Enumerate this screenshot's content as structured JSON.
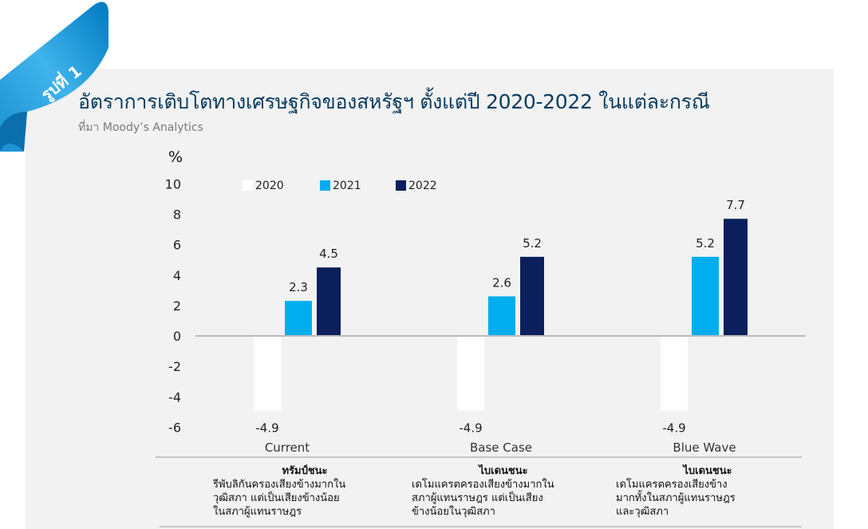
{
  "badge": "รูปที่ 1",
  "title": "อัตราการเติบโตทางเศรษฐกิจของสหรัฐฯ ตั้งแต่ปี 2020-2022 ในแต่ละกรณี",
  "source": "ที่มา Moody’s Analytics",
  "colors": {
    "2020": "#ffffff",
    "2021": "#00aeef",
    "2022": "#0b1f5c",
    "title": "#0a3d62",
    "ribbon": "#0095da"
  },
  "chart_data": {
    "type": "bar",
    "title": "อัตราการเติบโตทางเศรษฐกิจของสหรัฐฯ ตั้งแต่ปี 2020-2022 ในแต่ละกรณี",
    "ylabel": "%",
    "xlabel": "",
    "ylim": [
      -6,
      10
    ],
    "yticks": [
      10,
      8,
      6,
      4,
      2,
      0,
      -2,
      -4,
      -6
    ],
    "legend_position": "top-left",
    "categories": [
      "Current",
      "Base Case",
      "Blue Wave"
    ],
    "series": [
      {
        "name": "2020",
        "values": [
          -4.9,
          -4.9,
          -4.9
        ]
      },
      {
        "name": "2021",
        "values": [
          2.3,
          2.6,
          5.2
        ]
      },
      {
        "name": "2022",
        "values": [
          4.5,
          5.2,
          7.7
        ]
      }
    ]
  },
  "notes": [
    {
      "heading": "ทรัมป์ชนะ",
      "lines": [
        "รีพับลิกันครองเสียงข้างมากใน",
        "วุฒิสภา แต่เป็นเสียงข้างน้อย",
        "ในสภาผู้แทนราษฎร"
      ]
    },
    {
      "heading": "ไบเดนชนะ",
      "lines": [
        "เดโมแครตครองเสียงข้างมากใน",
        "สภาผู้แทนราษฎร แต่เป็นเสียง",
        "ข้างน้อยในวุฒิสภา"
      ]
    },
    {
      "heading": "ไบเดนชนะ",
      "lines": [
        "เดโมแครตครองเสียงข้าง",
        "มากทั้งในสภาผู้แทนราษฎร",
        "และวุฒิสภา"
      ]
    }
  ]
}
